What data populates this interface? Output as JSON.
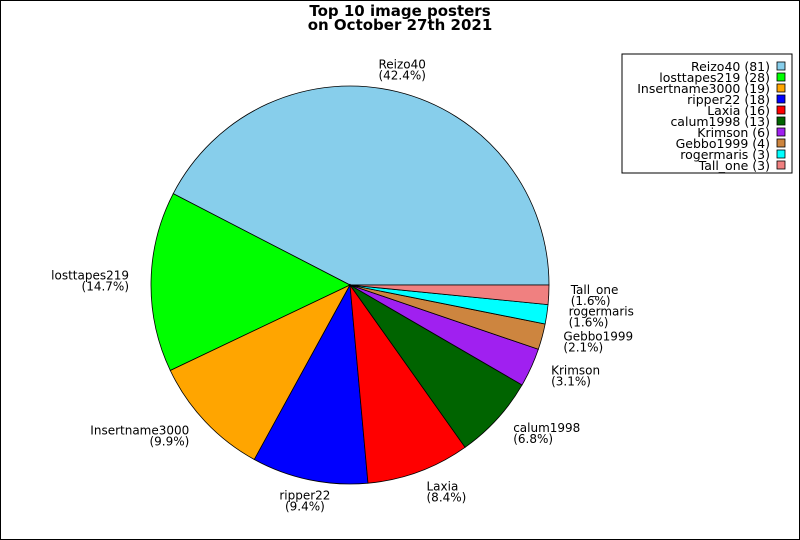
{
  "chart_data": {
    "type": "pie",
    "title_lines": [
      "Top 10 image posters",
      "on October 27th 2021"
    ],
    "legend_position": "top-right",
    "slices": [
      {
        "name": "Reizo40",
        "value": 81,
        "percent": "(42.4%)",
        "legend": "Reizo40 (81)",
        "color": "#87CEEB"
      },
      {
        "name": "losttapes219",
        "value": 28,
        "percent": "(14.7%)",
        "legend": "losttapes219 (28)",
        "color": "#00FF00"
      },
      {
        "name": "Insertname3000",
        "value": 19,
        "percent": "(9.9%)",
        "legend": "Insertname3000 (19)",
        "color": "#FFA500"
      },
      {
        "name": "ripper22",
        "value": 18,
        "percent": "(9.4%)",
        "legend": "ripper22 (18)",
        "color": "#0000FF"
      },
      {
        "name": "Laxia",
        "value": 16,
        "percent": "(8.4%)",
        "legend": "Laxia (16)",
        "color": "#FF0000"
      },
      {
        "name": "calum1998",
        "value": 13,
        "percent": "(6.8%)",
        "legend": "calum1998 (13)",
        "color": "#006400"
      },
      {
        "name": "Krimson",
        "value": 6,
        "percent": "(3.1%)",
        "legend": "Krimson (6)",
        "color": "#A020F0"
      },
      {
        "name": "Gebbo1999",
        "value": 4,
        "percent": "(2.1%)",
        "legend": "Gebbo1999 (4)",
        "color": "#CD853F"
      },
      {
        "name": "rogermaris",
        "value": 3,
        "percent": "(1.6%)",
        "legend": "rogermaris (3)",
        "color": "#00FFFF"
      },
      {
        "name": "Tall_one",
        "value": 3,
        "percent": "(1.6%)",
        "legend": "Tall_one (3)",
        "color": "#F08080"
      }
    ]
  }
}
